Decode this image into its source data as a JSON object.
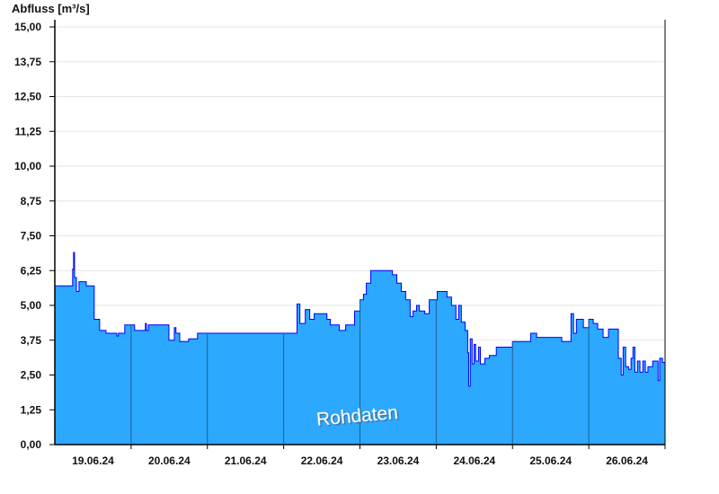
{
  "chart_data": {
    "type": "area",
    "ylabel": "Abfluss [m³/s]",
    "ylim": [
      0,
      15
    ],
    "yticks": [
      "0,00",
      "1,25",
      "2,50",
      "3,75",
      "5,00",
      "6,25",
      "7,50",
      "8,75",
      "10,00",
      "11,25",
      "12,50",
      "13,75",
      "15,00"
    ],
    "xlim": [
      "19.06.24 00:00",
      "27.06.24 00:00"
    ],
    "xticks": [
      "19.06.24",
      "20.06.24",
      "21.06.24",
      "22.06.24",
      "23.06.24",
      "24.06.24",
      "25.06.24",
      "26.06.24"
    ],
    "grid": true,
    "watermark": "Rohdaten",
    "colors": {
      "fill": "#2ca8ff",
      "line": "#0000ff",
      "day_separator": "#1f5f8f",
      "grid": "#e6e6e6"
    },
    "series": [
      {
        "points": [
          [
            "19.06.24 00:00",
            5.7
          ],
          [
            "19.06.24 05:36",
            6.3
          ],
          [
            "19.06.24 05:54",
            6.9
          ],
          [
            "19.06.24 06:12",
            6.0
          ],
          [
            "19.06.24 06:48",
            5.5
          ],
          [
            "19.06.24 07:36",
            5.85
          ],
          [
            "19.06.24 09:54",
            5.7
          ],
          [
            "19.06.24 12:24",
            4.5
          ],
          [
            "19.06.24 14:06",
            4.1
          ],
          [
            "19.06.24 16:06",
            4.0
          ],
          [
            "19.06.24 19:30",
            3.9
          ],
          [
            "19.06.24 20:00",
            4.0
          ],
          [
            "19.06.24 22:00",
            4.3
          ],
          [
            "20.06.24 01:06",
            4.1
          ],
          [
            "20.06.24 04:30",
            4.35
          ],
          [
            "20.06.24 04:48",
            4.1
          ],
          [
            "20.06.24 05:24",
            4.3
          ],
          [
            "20.06.24 11:54",
            3.75
          ],
          [
            "20.06.24 13:36",
            4.2
          ],
          [
            "20.06.24 14:06",
            4.0
          ],
          [
            "20.06.24 15:18",
            3.7
          ],
          [
            "20.06.24 18:06",
            3.8
          ],
          [
            "20.06.24 20:54",
            4.0
          ],
          [
            "22.06.24 03:42",
            4.0
          ],
          [
            "22.06.24 04:12",
            5.05
          ],
          [
            "22.06.24 05:06",
            4.35
          ],
          [
            "22.06.24 06:48",
            4.85
          ],
          [
            "22.06.24 08:12",
            4.5
          ],
          [
            "22.06.24 09:36",
            4.7
          ],
          [
            "22.06.24 13:36",
            4.5
          ],
          [
            "22.06.24 14:42",
            4.3
          ],
          [
            "22.06.24 17:30",
            4.1
          ],
          [
            "22.06.24 19:30",
            4.3
          ],
          [
            "22.06.24 22:18",
            4.8
          ],
          [
            "23.06.24 00:00",
            5.2
          ],
          [
            "23.06.24 01:06",
            5.4
          ],
          [
            "23.06.24 02:00",
            5.8
          ],
          [
            "23.06.24 03:24",
            6.25
          ],
          [
            "23.06.24 10:12",
            6.1
          ],
          [
            "23.06.24 11:36",
            5.8
          ],
          [
            "23.06.24 13:00",
            5.5
          ],
          [
            "23.06.24 14:24",
            5.2
          ],
          [
            "23.06.24 15:48",
            4.6
          ],
          [
            "23.06.24 16:42",
            4.8
          ],
          [
            "23.06.24 17:48",
            5.0
          ],
          [
            "23.06.24 18:42",
            4.8
          ],
          [
            "23.06.24 20:24",
            4.7
          ],
          [
            "23.06.24 21:48",
            5.2
          ],
          [
            "24.06.24 00:18",
            5.5
          ],
          [
            "24.06.24 03:24",
            5.3
          ],
          [
            "24.06.24 04:48",
            5.0
          ],
          [
            "24.06.24 06:12",
            4.5
          ],
          [
            "24.06.24 07:06",
            5.0
          ],
          [
            "24.06.24 07:54",
            4.4
          ],
          [
            "24.06.24 09:06",
            4.1
          ],
          [
            "24.06.24 09:54",
            3.3
          ],
          [
            "24.06.24 10:12",
            2.1
          ],
          [
            "24.06.24 10:42",
            3.8
          ],
          [
            "24.06.24 11:18",
            2.9
          ],
          [
            "24.06.24 11:54",
            3.6
          ],
          [
            "24.06.24 12:24",
            3.0
          ],
          [
            "24.06.24 13:18",
            3.5
          ],
          [
            "24.06.24 13:54",
            2.9
          ],
          [
            "24.06.24 15:18",
            3.1
          ],
          [
            "24.06.24 16:42",
            3.2
          ],
          [
            "24.06.24 18:54",
            3.5
          ],
          [
            "25.06.24 00:00",
            3.7
          ],
          [
            "25.06.24 05:42",
            4.0
          ],
          [
            "25.06.24 07:36",
            3.85
          ],
          [
            "25.06.24 15:30",
            3.7
          ],
          [
            "25.06.24 18:24",
            4.7
          ],
          [
            "25.06.24 19:12",
            4.0
          ],
          [
            "25.06.24 20:06",
            4.5
          ],
          [
            "25.06.24 22:18",
            4.2
          ],
          [
            "26.06.24 00:00",
            4.5
          ],
          [
            "26.06.24 01:24",
            4.35
          ],
          [
            "26.06.24 02:48",
            4.15
          ],
          [
            "26.06.24 04:30",
            3.85
          ],
          [
            "26.06.24 06:12",
            4.15
          ],
          [
            "26.06.24 09:18",
            3.1
          ],
          [
            "26.06.24 10:12",
            2.5
          ],
          [
            "26.06.24 10:48",
            3.5
          ],
          [
            "26.06.24 11:36",
            2.8
          ],
          [
            "26.06.24 12:30",
            2.7
          ],
          [
            "26.06.24 13:18",
            3.1
          ],
          [
            "26.06.24 13:54",
            3.5
          ],
          [
            "26.06.24 14:30",
            2.6
          ],
          [
            "26.06.24 15:18",
            3.0
          ],
          [
            "26.06.24 16:06",
            2.6
          ],
          [
            "26.06.24 17:00",
            3.0
          ],
          [
            "26.06.24 17:48",
            2.6
          ],
          [
            "26.06.24 18:36",
            2.8
          ],
          [
            "26.06.24 20:06",
            3.0
          ],
          [
            "26.06.24 21:48",
            2.3
          ],
          [
            "26.06.24 22:18",
            3.1
          ],
          [
            "26.06.24 23:12",
            2.95
          ]
        ]
      }
    ]
  }
}
